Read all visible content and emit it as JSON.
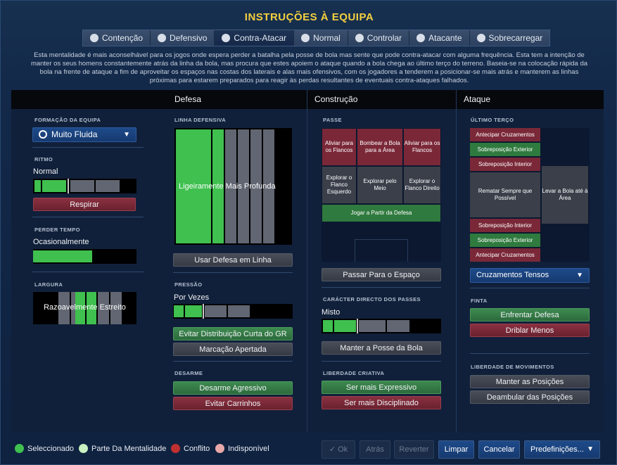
{
  "title": "INSTRUÇÕES À EQUIPA",
  "tabs": [
    {
      "label": "Contenção",
      "icon": "shield-heart-icon"
    },
    {
      "label": "Defensivo",
      "icon": "shield-icon"
    },
    {
      "label": "Contra-Atacar",
      "icon": "counter-icon"
    },
    {
      "label": "Normal",
      "icon": "ball-icon"
    },
    {
      "label": "Controlar",
      "icon": "control-icon"
    },
    {
      "label": "Atacante",
      "icon": "attack-icon"
    },
    {
      "label": "Sobrecarregar",
      "icon": "overload-icon"
    }
  ],
  "active_tab": "Contra-Atacar",
  "description": "Esta mentalidade é mais aconselhável para os jogos onde espera perder a batalha pela posse de bola mas sente que pode contra-atacar com alguma frequência. Esta tem a intenção de manter os seus homens constantemente atrás da linha da bola, mas procura que estes apoiem o ataque quando a bola chega ao último terço do terreno. Baseia-se na colocação rápida da bola na frente de ataque a fim de aproveitar os espaços nas costas dos laterais e alas mais ofensivos, com os jogadores a tenderem a posicionar-se mais atrás e manterem as linhas próximas para estarem preparados para reagir às perdas resultantes de eventuais contra-ataques falhados.",
  "columns": {
    "defesa": "Defesa",
    "construcao": "Construção",
    "ataque": "Ataque"
  },
  "left": {
    "formacao_label": "FORMAÇÃO DA EQUIPA",
    "formacao_value": "Muito Fluida",
    "ritmo_label": "RITMO",
    "ritmo_value": "Normal",
    "ritmo_level": 0.4,
    "respirar": "Respirar",
    "perder_label": "PERDER TEMPO",
    "perder_value": "Ocasionalmente",
    "perder_level": 0.6,
    "largura_label": "LARGURA",
    "largura_value": "Razoavelmente Estreito"
  },
  "defesa": {
    "linha_label": "LINHA DEFENSIVA",
    "linha_value": "Ligeiramente Mais Profunda",
    "usar_linha": "Usar Defesa em Linha",
    "pressao_label": "PRESSÃO",
    "pressao_value": "Por Vezes",
    "pressao_level": 0.3,
    "evitar_gr": "Evitar Distribuição Curta do GR",
    "marcacao": "Marcação Apertada",
    "desarme_label": "DESARME",
    "desarme_agressivo": "Desarme Agressivo",
    "evitar_carrinhos": "Evitar Carrinhos"
  },
  "construcao": {
    "passe_label": "PASSE",
    "cells": {
      "aliviar_l": "Aliviar para os Flancos",
      "bombear": "Bombear a Bola para a Área",
      "aliviar_r": "Aliviar para os Flancos",
      "explorar_l": "Explorar o Flanco Esquerdo",
      "explorar_meio": "Explorar pelo Meio",
      "explorar_r": "Explorar o Flanco Direito",
      "jogar_defesa": "Jogar a Partir da Defesa"
    },
    "passar_espaco": "Passar Para o Espaço",
    "directo_label": "CARÁCTER DIRECTO DOS PASSES",
    "directo_value": "Misto",
    "directo_level": 0.4,
    "manter_posse": "Manter a Posse da Bola",
    "liberdade_label": "LIBERDADE CRIATIVA",
    "expressivo": "Ser mais Expressivo",
    "disciplinado": "Ser mais Disciplinado"
  },
  "ataque": {
    "ultimo_label": "ÚLTIMO TERÇO",
    "cells": {
      "antecipar_top": "Antecipar Cruzamentos",
      "sobrepos_ext_top": "Sobreposição Exterior",
      "sobrepos_int_top": "Sobreposição Interior",
      "rematar": "Rematar Sempre que Possível",
      "levar_area": "Levar a Bola até à Área",
      "sobrepos_int_bot": "Sobreposição Interior",
      "sobrepos_ext_bot": "Sobreposição Exterior",
      "antecipar_bot": "Antecipar Cruzamentos"
    },
    "cruzamentos": "Cruzamentos Tensos",
    "finta_label": "FINTA",
    "enfrentar": "Enfrentar Defesa",
    "driblar": "Driblar Menos",
    "movimentos_label": "LIBERDADE DE MOVIMENTOS",
    "manter_pos": "Manter as Posições",
    "deambular": "Deambular das Posições"
  },
  "legend": [
    {
      "label": "Seleccionado",
      "color": "#3fc04f"
    },
    {
      "label": "Parte Da Mentalidade",
      "color": "#c8f0c0"
    },
    {
      "label": "Conflito",
      "color": "#c03030"
    },
    {
      "label": "Indisponível",
      "color": "#e8a8a8"
    }
  ],
  "footer": {
    "ok": "Ok",
    "atras": "Atrás",
    "reverter": "Reverter",
    "limpar": "Limpar",
    "cancelar": "Cancelar",
    "predefinicoes": "Predefinições..."
  }
}
